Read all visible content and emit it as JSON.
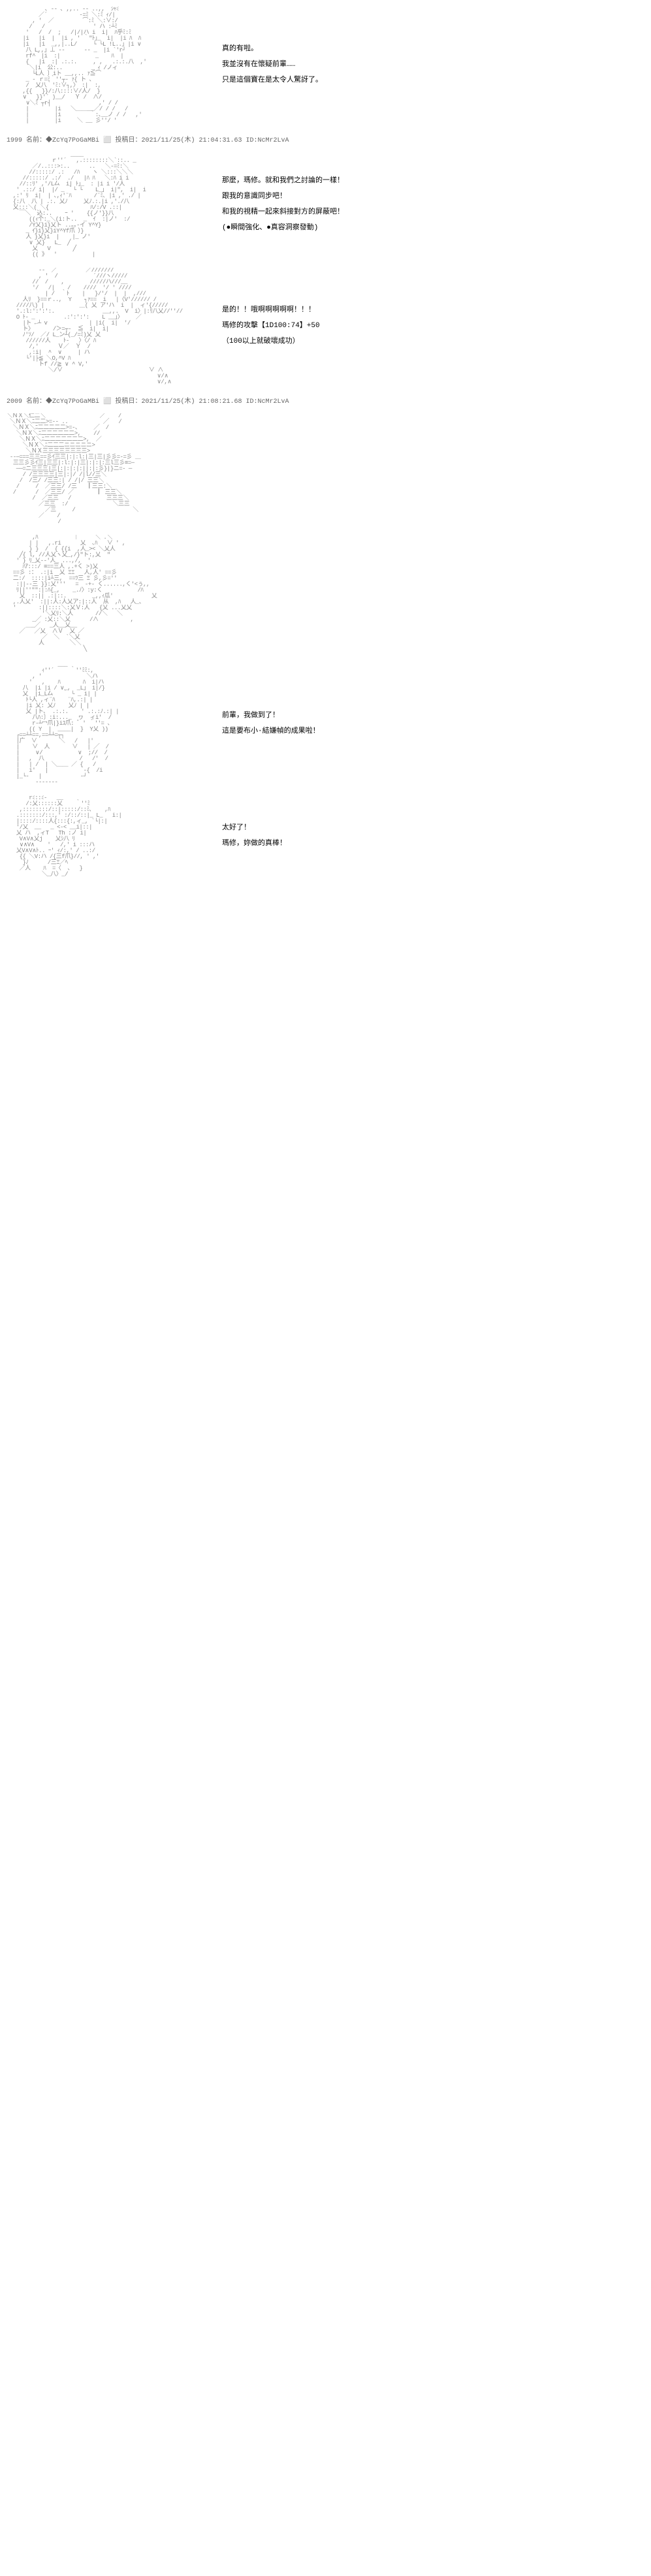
{
  "posts": [
    {
      "ascii": "            ､ -- ､ ,,.. -- ..,,  ｼｬﾐ\n          ／´          -=ﾐ ＼:ﾐ ｨ/|\n        , '  ／         ⌒:ﾐ ＼:∨:/\n       /   /               ' ハ :┴ﾐ\n      '   /  /  ;   /|/|ハ i  i|  ﾊ乎ﾐ:ﾐ\n     |i   |i  |  |i , ' ｀\"ﾄ｣_  i|  |i ﾊ  ﾊ\n     |i   |i  _,,|..L/     └ └L !L..｣ |i ∨\n      八 L,,」⊥ -‐      ‐- _  |i `'r┘\n      rf^｀|i  :|           _    ﾊ  |\n      {   |i  :| .:.:.     , ,   .:.:.八  ,'\n       ＼|i  公:..         _ ｨ /ノィ\n        └L人 〕iト __,,.. ｧ≦⌒\n      _ - ｒ=ﾐ｀''┬- ｧ{ ト ､\n      /  乂八｀'ﾐ:∨┐,〉 :|  :,\n     ,{{   }}/:八::::∨/人/  }\n     ∨   }}'´ )__/   Ｙ /  ∧/\n      ∨＼ﾐ ┬r┤               ,' / /\n      |        |i   ＼＿＿__／/ / /   /\n      |        |i         ｀:､__ノ / /   ,′\n      |        |i     ＼ __ 彡'′/ ′",
      "dialogue": [
        "真的有啦。",
        "我並沒有在懷疑前輩……",
        "只是這個寶在是太令人驚訝了。"
      ]
    }
  ],
  "meta1": "1999 名前：◆ZcYq7PoGaMBi ⬜ 投稿日：2021/11/25(木) 21:04:31.63 ID:NcMr2LvA",
  "posts2": [
    {
      "ascii": "                    ____\n              ｒ''´   ,.::::::::＼`::.. _\n        ／/..:::>:..      ..   ＼-=ﾐ:＼\n       //:::::/ .:   /ﾊ    ヽ ＼:::＼＼＼\n     //:::::/ .:/  ./   |ﾊ ﾊ   ＼:ﾊ i i\n    //::ﾘ' ,′/L厶  i| ﾄ｣_  : |i i '/人\n   ' .::/ i|  |/ _ ｀└ └    L_｣  i|\",  i|  i\n  ,:' ﾘ  i|  | ､,ｨ'¨ﾊ       /¨ﾐ､ |i ,' ./ |\n  {:八  八 | .:. 乂ﾉ     乂ﾉ.:.|i ,'./八\n  乂:::＼( ＼{             ﾊ/:/V .::|\n    ￣＼  込:..    ｰ '    {{ノ'}}八\n       ((ｨ个:_＼(i:ト..  _  ｲ  :|ノ'  :/\n       /Y乂}i}乂ト ..｡｡-イ Y^Y}\n      _ ｲ}i}乂}iY^Yf爪 ）}\n      人 }乂}i  |    |_ ノ'\n       ∨ 乂}   L_  ╱\n        乂   V       ╱\n        (( 》  '           |",
      "dialogue": [
        "那麼，瑪修。就和我們之討論的一樣！",
        "跟我的意識同步吧！",
        "和我的視精一起來斜接對方的屏蔽吧！",
        "(●瞬間強化、●真容洞察發動)"
      ]
    },
    {
      "ascii": "          -‐  ／         ／///////\n          , '  /           ´///ヽ/////\n        //  /    ,        /////ハ///__\n        ′/   /|    /    ////  '/ ' ////\n            | /  ｀ﾄ    |   }/'/  |  |  ,///\n     人ﾘ  }==ｒ..,  Y    ┐ｧ==  i   |〈V'////// /\n   ////八) |           ＿( 乂 ア'ハ  i  |  ィ'{/////\n   '.:l:':':':.               __,,.  V  i〉|:ﾘ八乂//''//\n   O ﾄ- _         .:':':':    L __」〉    ／\n     |ト ←┴ v             | |i(  i|  '/\n     ト〉      /＞=┬-  ≦  i|  i|\n     ﾉ'ｿ/  ／/ L_ン┴(_/=ﾐ)乂 乂\n      //////人    ﾄ-   〉〈/ ﾊ\n       /,′      Ｖ／  Ｙ  /\n       ,:i|  ^  ∨     | ハ\n      └'|├≦ ＼О,^V ﾊ\n          トf //≧ ∨ ^ V,′\n             ＼/∨                           ∨ ∧\n                                               ∨/∧\n                                               ∨/,∧",
      "dialogue": [
        "是的！！哦啊啊啊啊啊！！！",
        "",
        "瑪修的攻擊【1D100:74】+50",
        "（100以上就破壞成功）"
      ]
    }
  ],
  "meta2": "2009 名前：◆ZcYq7PoGaMBi ⬜ 投稿日：2021/11/25(木) 21:08:21.68 ID:NcMr2LvA",
  "posts3": [
    {
      "ascii": "＼ＮＸ＼仁二＼                 ╱    /\n ＼ＮＸ＼ﾆ二二>=-- ..           ╱   /\n  ＼ＮＸ＼ﾆ二二二二二>=-､     ╱  /\n   ＼ＮＸ＼ﾆ二二二二二二>,    //\n    ＼ＮＸ＼ﾆ二二二二二二二>,  ／\n     ＼ＮＸ＼ﾆ二二二ニニニニニ>\n      ＼ＮＸ三三三三三三三三>\n --─===三三==彡ｲ三三|:|:l:|三|三|彡彡=-=彡 ＿\n  三三彡彡ｲ三|三三|:l:|:|三|:|:|:三l三彡≡=─\n   ──=ニ三三三|三|:|:|:|:||:|:彡}|}ニ=‐ ─\n     / /三三三三|三|:|/ /|l//三＼\n    /  /三/ /三三:| / /|/ 三三＼\n   /     /  ／三三/ /三   ┃三三:＼\n  /      /  ／三三/ ／       ┃ 三三＼\n        /  ／三三   /           三三三＼\n          ／三三  :/              ＼三三\n            ／三     /                  ＼\n          ／    /\n                /",
      "dialogue": []
    },
    {
      "ascii": "        ,ﾊ           ｜     ＼ .＼\n       | |   ,.ri      乂  ､ﾊ   ∨ ' ,\n       } }  /  { {{i  ,人_>< ＼乂人\n    ╱{ l, //人乂ヽ乂_,/}\"ト:,乂  \"\n   ' } ﾘ_乂-‐'人_ ...,/,  '\n     ﾊｱ:::/ ≡==三人 ,.+く >)乂\n  ==彡 :： .:|i  乂 ΞΞ   人,人' ==彡\n  二:/  ::::|i┴三,  ==ﾂ三 Ξ 彡,彡=''\n   :||--三 }}:乂'''   =  -+- く......,く'<ぅ,,\n   ﾘ||''\"\":|:ﾊ{_,    _.ﾉ〉:y:く           /ﾊ\n    乂  ::|| .:|::.        _,,ｨ瓜'            乂\n  ,.人乂'  :||:人:人乂ア:|::人  从  ,ﾊ   人_､\n  '       :||::::＼:乂Ｖ:人   {乂 ...乂乂 \n           '＼乂ﾘ:＼人       //＼   ＼\n        _╱ :乂::＼乂      /∧          ,\n      ＿_╱   _人__乂__\n    ╱   ╱乂  ∧Ｖ  乂 ╱\n           ／  ＼  `＼乂\n          人        ╲╲\n                        ╲",
      "dialogue": []
    },
    {
      "ascii": "                ___\n           ｨ''´     ｀''ﾐﾐ:,\n        , '              ＼ハ\n       '   ,    ﾊ       ﾊ  i|ハ\n     八  |i |i / ∨_,  _L」 i|/}\n     乂  |i_L厶   ｀ └ _ i| |\n      ﾄ└人 ,ィ¨ﾊ    ¨ﾊ,.:| |\n      |i 乂: 乂ﾉ    乂ﾉ | |\n      乂 |ト､  .:.:.    ' .:.:ﾉ.:| |\n        八ﾊ:〕:i:..._  ヮ  ィi'  /\n        r-┴冖爪|}iﾕ爪: ゛' ｀''= 、\n       (( Y  |  ____|  }  Y乂 ))\n   ┌==┴┴==,==┴┴=┬┐\n   |广  ∨       ＼   /   |'\n   |    ∨  人       ∨   | ╱  /\n   |     ∨/           ∨  ;//  /\n   |   ,  八           /   /'  /\n   |   | /  | ＼＿＿ ／ {   /\n   |   i'   |           -{  /i\n   |_└-   |            -┘\n         ------‐",
      "dialogue": [
        "前輩，我做到了！",
        "這是要布小·結嫌幀的成果啦！"
      ]
    },
    {
      "ascii": "       rﾐ::ﾐ-   __\n      /:乂::::::乂    ｀''ﾐ\n    ,::::::::/::|:::::/::ﾐ､    ,ﾊ\n   .:::::::/:::,' :/::/::|_ L_   i:|\n   |::::/::::人{:::{:,ィ_, `└|:|\n   '/乂  __   _ <-< __i|::|\n   乂 ハ  ,ィT   Th :ノ i|\n    V∧V∧乂j    乂ｼ八 ﾘ\n    ∨∧V∧    '   /,' i :::ハ\n   乂V∧V∧ﾄ.. ｰ' ｨ/:,' / ..:/\n    {{ ＼V:ハ /{三f爪}//, ' ,'\n     }ﾉ      /三Ξ／ﾍ\n    ／人    ﾊ  =〈  、  }\n           ＼_八〉_/",
      "dialogue": [
        "太好了！",
        "瑪修，妳做的真棒！"
      ]
    }
  ]
}
